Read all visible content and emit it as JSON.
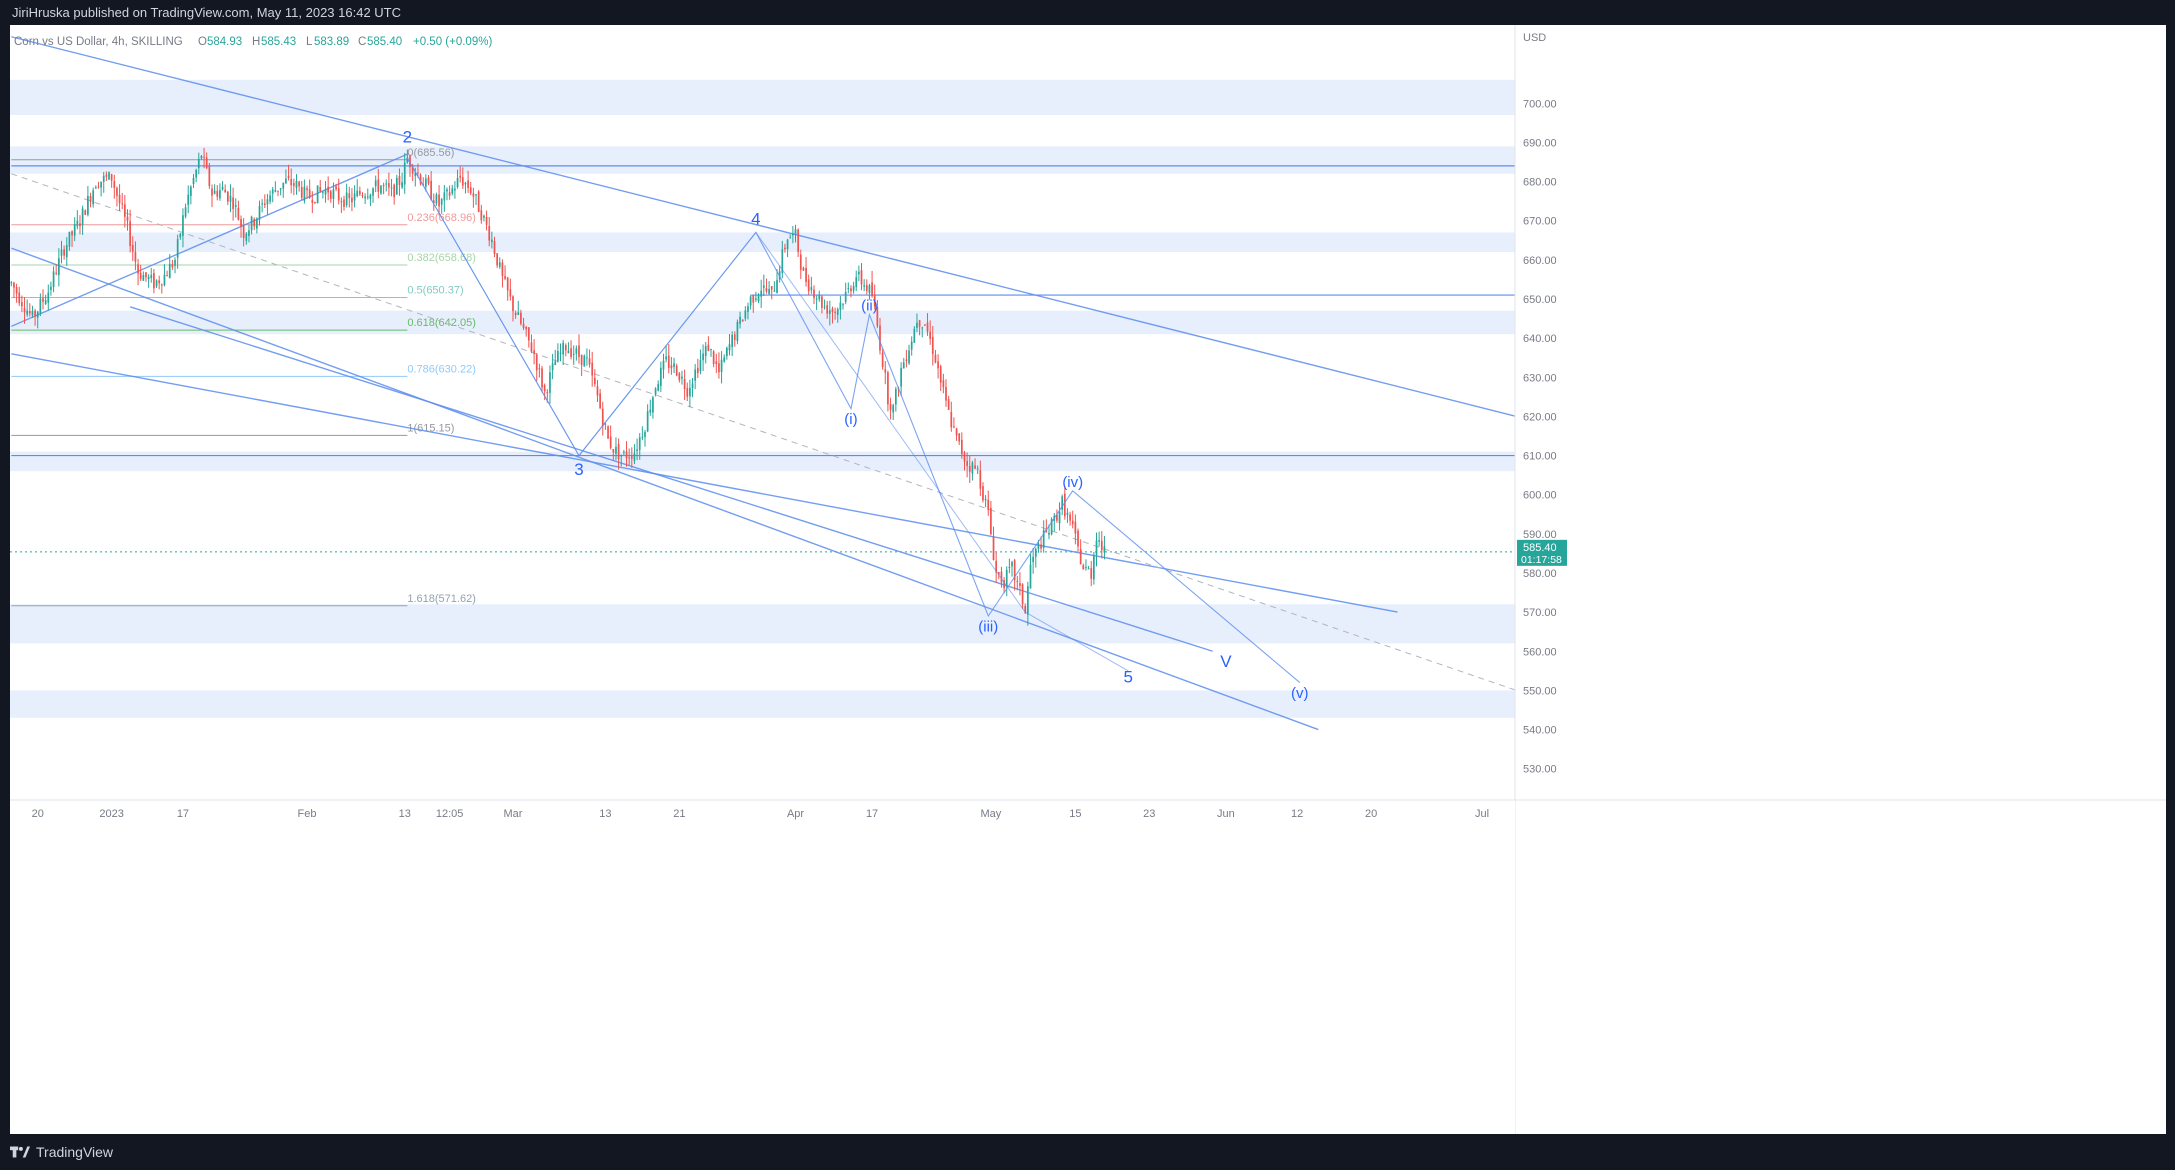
{
  "header": {
    "published_by": "JiriHruska published on TradingView.com, May 11, 2023 16:42 UTC"
  },
  "legend": {
    "symbol": "Corn vs US Dollar, 4h, SKILLING",
    "open_label": "O",
    "open": "584.93",
    "high_label": "H",
    "high": "585.43",
    "low_label": "L",
    "low": "583.89",
    "close_label": "C",
    "close": "585.40",
    "change": "+0.50 (+0.09%)"
  },
  "footer": {
    "brand": "TradingView"
  },
  "colors": {
    "up": "#26a69a",
    "down": "#ef5350",
    "zone": "#e8effc",
    "trendline": "#5b8def",
    "label": "#2962ff",
    "price_tag": "#26a69a"
  },
  "chart_data": {
    "type": "candlestick",
    "title": "Corn vs US Dollar, 4h, SKILLING",
    "currency": "USD",
    "ylim": [
      522,
      720
    ],
    "y_ticks": [
      "700.00",
      "690.00",
      "680.00",
      "670.00",
      "660.00",
      "650.00",
      "640.00",
      "630.00",
      "620.00",
      "610.00",
      "600.00",
      "590.00",
      "580.00",
      "570.00",
      "560.00",
      "550.00",
      "540.00",
      "530.00"
    ],
    "y_tick_values": [
      700,
      690,
      680,
      670,
      660,
      650,
      640,
      630,
      620,
      610,
      600,
      590,
      580,
      570,
      560,
      550,
      540,
      530
    ],
    "x_ticks": [
      "20",
      "2023",
      "17",
      "Feb",
      "13",
      "12:05",
      "Mar",
      "13",
      "21",
      "Apr",
      "17",
      "May",
      "15",
      "23",
      "Jun",
      "12",
      "20",
      "Jul"
    ],
    "x_tick_bar": [
      10,
      38,
      65,
      112,
      149,
      166,
      190,
      225,
      253,
      297,
      326,
      371,
      403,
      431,
      460,
      487,
      515,
      557
    ],
    "bars_total": 570,
    "last_price": {
      "value": "585.40",
      "countdown": "01:17:58",
      "price": 585.4
    },
    "price_anchors": [
      [
        0,
        654
      ],
      [
        8,
        645
      ],
      [
        14,
        652
      ],
      [
        20,
        663
      ],
      [
        26,
        670
      ],
      [
        32,
        680
      ],
      [
        38,
        681
      ],
      [
        44,
        668
      ],
      [
        48,
        657
      ],
      [
        54,
        654
      ],
      [
        58,
        656
      ],
      [
        62,
        660
      ],
      [
        66,
        674
      ],
      [
        72,
        687
      ],
      [
        76,
        677
      ],
      [
        80,
        678
      ],
      [
        84,
        675
      ],
      [
        88,
        667
      ],
      [
        92,
        670
      ],
      [
        96,
        675
      ],
      [
        100,
        678
      ],
      [
        104,
        680
      ],
      [
        108,
        679
      ],
      [
        112,
        676
      ],
      [
        116,
        677
      ],
      [
        120,
        678
      ],
      [
        124,
        676
      ],
      [
        128,
        675
      ],
      [
        132,
        677
      ],
      [
        136,
        678
      ],
      [
        140,
        679
      ],
      [
        144,
        677
      ],
      [
        148,
        681
      ],
      [
        150,
        686
      ],
      [
        154,
        682
      ],
      [
        158,
        678
      ],
      [
        162,
        674
      ],
      [
        166,
        677
      ],
      [
        170,
        681
      ],
      [
        174,
        678
      ],
      [
        178,
        672
      ],
      [
        182,
        665
      ],
      [
        186,
        655
      ],
      [
        190,
        648
      ],
      [
        194,
        642
      ],
      [
        198,
        636
      ],
      [
        202,
        626
      ],
      [
        206,
        634
      ],
      [
        210,
        638
      ],
      [
        214,
        636
      ],
      [
        218,
        634
      ],
      [
        222,
        625
      ],
      [
        226,
        614
      ],
      [
        229,
        611
      ],
      [
        232,
        610
      ],
      [
        236,
        611
      ],
      [
        240,
        618
      ],
      [
        244,
        628
      ],
      [
        248,
        634
      ],
      [
        252,
        632
      ],
      [
        256,
        627
      ],
      [
        260,
        633
      ],
      [
        264,
        638
      ],
      [
        268,
        631
      ],
      [
        272,
        638
      ],
      [
        276,
        644
      ],
      [
        280,
        650
      ],
      [
        284,
        653
      ],
      [
        288,
        651
      ],
      [
        292,
        661
      ],
      [
        294,
        666
      ],
      [
        297,
        666
      ],
      [
        300,
        656
      ],
      [
        304,
        652
      ],
      [
        308,
        648
      ],
      [
        312,
        647
      ],
      [
        316,
        651
      ],
      [
        320,
        656
      ],
      [
        324,
        653
      ],
      [
        326,
        651
      ],
      [
        328,
        643
      ],
      [
        332,
        625
      ],
      [
        334,
        622
      ],
      [
        337,
        632
      ],
      [
        341,
        640
      ],
      [
        343,
        645
      ],
      [
        346,
        644
      ],
      [
        350,
        635
      ],
      [
        354,
        623
      ],
      [
        358,
        614
      ],
      [
        362,
        608
      ],
      [
        366,
        606
      ],
      [
        370,
        595
      ],
      [
        373,
        580
      ],
      [
        376,
        578
      ],
      [
        379,
        581
      ],
      [
        383,
        573
      ],
      [
        384,
        570
      ],
      [
        386,
        582
      ],
      [
        390,
        588
      ],
      [
        394,
        592
      ],
      [
        398,
        598
      ],
      [
        402,
        591
      ],
      [
        406,
        581
      ],
      [
        409,
        580
      ],
      [
        411,
        590
      ],
      [
        414,
        585
      ]
    ],
    "zones": [
      [
        697,
        706
      ],
      [
        682,
        689
      ],
      [
        662,
        667
      ],
      [
        641,
        647
      ],
      [
        606,
        611
      ],
      [
        562,
        572
      ],
      [
        543,
        550
      ]
    ],
    "horizontal_lines": [
      {
        "price": 684,
        "from_bar": 0,
        "to_bar": 570
      },
      {
        "price": 610,
        "from_bar": 0,
        "to_bar": 570
      },
      {
        "price": 651,
        "from_bar": 280,
        "to_bar": 570
      }
    ],
    "fib_levels": [
      {
        "label": "0(685.56)",
        "price": 685.56
      },
      {
        "label": "0.236(668.96)",
        "price": 668.96
      },
      {
        "label": "0.382(658.68)",
        "price": 658.68
      },
      {
        "label": "0.5(650.37)",
        "price": 650.37
      },
      {
        "label": "0.618(642.05)",
        "price": 642.05
      },
      {
        "label": "0.786(630.22)",
        "price": 630.22
      },
      {
        "label": "1(615.15)",
        "price": 615.15
      },
      {
        "label": "1.618(571.62)",
        "price": 571.62
      }
    ],
    "wave_labels": [
      {
        "text": "2",
        "bar": 150,
        "price": 690
      },
      {
        "text": "3",
        "bar": 215,
        "price": 605
      },
      {
        "text": "4",
        "bar": 282,
        "price": 669
      },
      {
        "text": "(i)",
        "bar": 318,
        "price": 618
      },
      {
        "text": "(ii)",
        "bar": 325,
        "price": 647
      },
      {
        "text": "(iii)",
        "bar": 370,
        "price": 565
      },
      {
        "text": "(iv)",
        "bar": 402,
        "price": 602
      },
      {
        "text": "5",
        "bar": 423,
        "price": 552
      },
      {
        "text": "V",
        "bar": 460,
        "price": 556
      },
      {
        "text": "(v)",
        "bar": 488,
        "price": 548
      }
    ],
    "trendlines": [
      {
        "from": [
          0,
          717
        ],
        "to": [
          570,
          620
        ]
      },
      {
        "from": [
          0,
          663
        ],
        "to": [
          495,
          540
        ]
      },
      {
        "from": [
          0,
          636
        ],
        "to": [
          525,
          570
        ]
      },
      {
        "from": [
          45,
          648
        ],
        "to": [
          455,
          560
        ]
      },
      {
        "from": [
          0,
          643
        ],
        "to": [
          150,
          687
        ]
      }
    ],
    "wave_path": [
      [
        150,
        686
      ],
      [
        215,
        610
      ],
      [
        282,
        667
      ],
      [
        318,
        622
      ],
      [
        325,
        646
      ],
      [
        370,
        569
      ],
      [
        402,
        601
      ],
      [
        488,
        552
      ]
    ],
    "sub_wave_path": [
      [
        150,
        686
      ],
      [
        215,
        610
      ],
      [
        282,
        667
      ],
      [
        384,
        570
      ],
      [
        423,
        555
      ]
    ]
  }
}
